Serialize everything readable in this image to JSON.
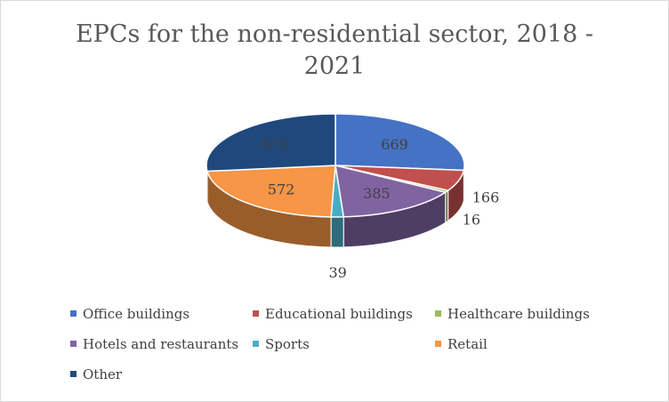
{
  "chart_data": {
    "type": "pie",
    "title": "EPCs for the non-residential sector, 2018 - 2021",
    "categories": [
      "Office buildings",
      "Educational buildings",
      "Healthcare buildings",
      "Hotels and restaurants",
      "Sports",
      "Retail",
      "Other"
    ],
    "values": [
      669,
      166,
      16,
      385,
      39,
      572,
      676
    ],
    "colors": [
      "#4472C4",
      "#C0504D",
      "#9BBB59",
      "#8064A2",
      "#4BACC6",
      "#F79646",
      "#1F497D"
    ],
    "data_labels": [
      "669",
      "166",
      "16",
      "385",
      "39",
      "572",
      "676"
    ],
    "style": "3d",
    "legend_position": "bottom"
  }
}
